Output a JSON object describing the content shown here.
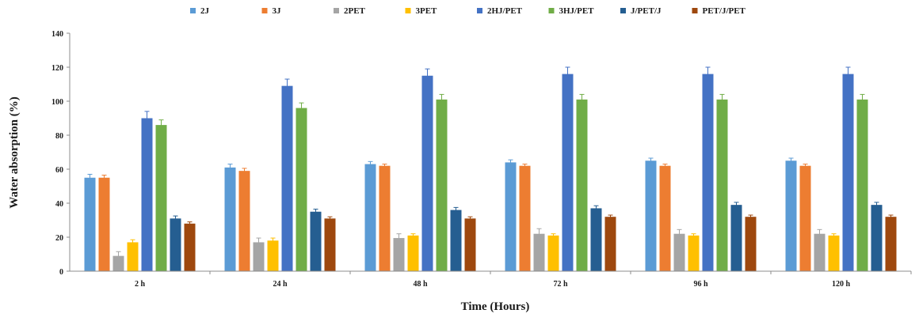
{
  "chart_data": {
    "type": "bar",
    "title": "",
    "xlabel": "Time (Hours)",
    "ylabel": "Water absorption (%)",
    "ylim": [
      0,
      140
    ],
    "yticks": [
      "0",
      "20",
      "40",
      "60",
      "80",
      "100",
      "120",
      "140"
    ],
    "grid": false,
    "legend_position": "top",
    "categories": [
      "2 h",
      "24 h",
      "48 h",
      "72 h",
      "96 h",
      "120 h"
    ],
    "series": [
      {
        "name": "2J",
        "color": "#5B9BD5",
        "values": [
          55,
          61,
          63,
          64,
          65,
          65
        ],
        "errors": [
          2,
          2,
          1.5,
          1.5,
          1.5,
          1.5
        ]
      },
      {
        "name": "3J",
        "color": "#ED7D31",
        "values": [
          55,
          59,
          62,
          62,
          62,
          62
        ],
        "errors": [
          1.5,
          1.5,
          1,
          1,
          1,
          1
        ]
      },
      {
        "name": "2PET",
        "color": "#A5A5A5",
        "values": [
          9,
          17,
          19.5,
          22,
          22,
          22
        ],
        "errors": [
          2.5,
          2.5,
          2.5,
          3,
          2.5,
          2.5
        ]
      },
      {
        "name": "3PET",
        "color": "#FFC000",
        "values": [
          17,
          18,
          21,
          21,
          21,
          21
        ],
        "errors": [
          1.5,
          1.5,
          1,
          1,
          1,
          1
        ]
      },
      {
        "name": "2HJ/PET",
        "color": "#4472C4",
        "values": [
          90,
          109,
          115,
          116,
          116,
          116
        ],
        "errors": [
          4,
          4,
          4,
          4,
          4,
          4
        ]
      },
      {
        "name": "3HJ/PET",
        "color": "#70AD47",
        "values": [
          86,
          96,
          101,
          101,
          101,
          101
        ],
        "errors": [
          3,
          3,
          3,
          3,
          3,
          3
        ]
      },
      {
        "name": "J/PET/J",
        "color": "#255E91",
        "values": [
          31,
          35,
          36,
          37,
          39,
          39
        ],
        "errors": [
          1.5,
          1.5,
          1.5,
          1.5,
          1.5,
          1.5
        ]
      },
      {
        "name": "PET/J/PET",
        "color": "#9E480E",
        "values": [
          28,
          31,
          31,
          32,
          32,
          32
        ],
        "errors": [
          1,
          1,
          1,
          1,
          1,
          1
        ]
      }
    ]
  }
}
